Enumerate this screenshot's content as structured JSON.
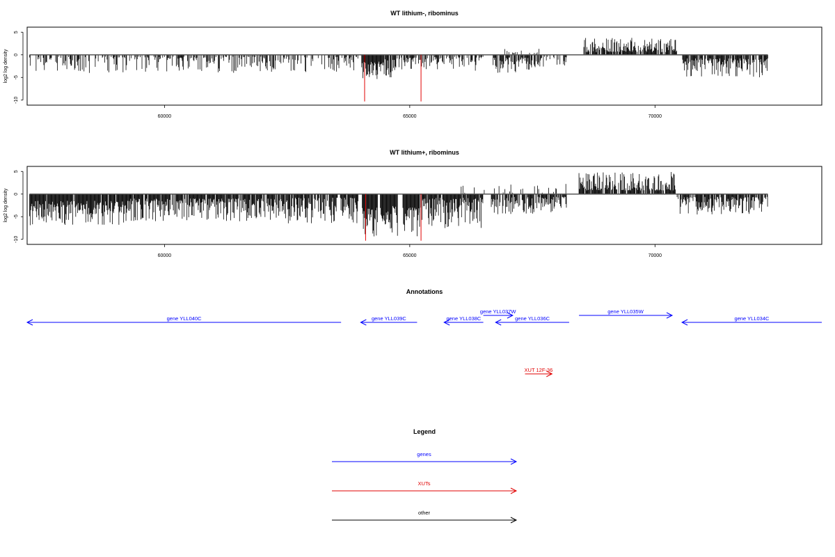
{
  "chart_data": [
    {
      "type": "bar",
      "title": "WT lithium-, ribominus",
      "ylabel": "log2 log density",
      "xlim": [
        57200,
        73400
      ],
      "ylim": [
        -10.5,
        5.5
      ],
      "yticks": [
        5,
        0,
        -5,
        -10
      ],
      "xticks": [
        60000,
        65000,
        70000
      ],
      "data_range": [
        57250,
        72300
      ],
      "grid": false,
      "baseline": 0,
      "segments": [
        {
          "from": 57250,
          "to": 63980,
          "sign": -1,
          "min": 0.4,
          "max": 4.0,
          "density": 0.45
        },
        {
          "from": 64020,
          "to": 64480,
          "sign": -1,
          "min": 1.5,
          "max": 5.5,
          "density": 0.95
        },
        {
          "from": 64500,
          "to": 64720,
          "sign": -1,
          "min": 1.0,
          "max": 5.0,
          "density": 0.9
        },
        {
          "from": 64720,
          "to": 65150,
          "sign": -1,
          "min": 0.6,
          "max": 3.5,
          "density": 0.7
        },
        {
          "from": 65180,
          "to": 66500,
          "sign": -1,
          "min": 0.4,
          "max": 3.5,
          "density": 0.55
        },
        {
          "from": 66700,
          "to": 67700,
          "sign": -1,
          "min": 0.6,
          "max": 4.0,
          "density": 0.7
        },
        {
          "from": 67700,
          "to": 68200,
          "sign": -1,
          "min": 0.4,
          "max": 3.0,
          "density": 0.3
        },
        {
          "from": 66900,
          "to": 67700,
          "sign": 1,
          "min": 0.3,
          "max": 2.0,
          "density": 0.15
        },
        {
          "from": 68550,
          "to": 70450,
          "sign": 1,
          "min": 0.6,
          "max": 3.8,
          "density": 0.8
        },
        {
          "from": 70550,
          "to": 72300,
          "sign": -1,
          "min": 0.8,
          "max": 5.0,
          "density": 0.85
        }
      ],
      "highlights": [
        {
          "x": 64080,
          "value": -10.3,
          "color": "#e00000"
        },
        {
          "x": 65230,
          "value": -10.3,
          "color": "#e00000"
        }
      ]
    },
    {
      "type": "bar",
      "title": "WT lithium+, ribominus",
      "ylabel": "log2 log density",
      "xlim": [
        57200,
        73400
      ],
      "ylim": [
        -10.5,
        5.5
      ],
      "yticks": [
        5,
        0,
        -5,
        -10
      ],
      "xticks": [
        60000,
        65000,
        70000
      ],
      "data_range": [
        57250,
        72300
      ],
      "grid": false,
      "baseline": 0,
      "segments": [
        {
          "from": 57250,
          "to": 59300,
          "sign": -1,
          "min": 1.5,
          "max": 7.0,
          "density": 0.95
        },
        {
          "from": 59300,
          "to": 62500,
          "sign": -1,
          "min": 1.0,
          "max": 6.0,
          "density": 0.9
        },
        {
          "from": 62500,
          "to": 63950,
          "sign": -1,
          "min": 0.8,
          "max": 6.5,
          "density": 0.85
        },
        {
          "from": 64030,
          "to": 64350,
          "sign": -1,
          "min": 3.0,
          "max": 9.5,
          "density": 1.0
        },
        {
          "from": 64400,
          "to": 64760,
          "sign": -1,
          "min": 2.5,
          "max": 9.8,
          "density": 1.0
        },
        {
          "from": 64860,
          "to": 65200,
          "sign": -1,
          "min": 3.0,
          "max": 9.8,
          "density": 1.0
        },
        {
          "from": 65200,
          "to": 66500,
          "sign": -1,
          "min": 0.8,
          "max": 7.5,
          "density": 0.9
        },
        {
          "from": 66650,
          "to": 68200,
          "sign": -1,
          "min": 0.6,
          "max": 4.5,
          "density": 0.75
        },
        {
          "from": 66000,
          "to": 68200,
          "sign": 1,
          "min": 0.3,
          "max": 2.5,
          "density": 0.12
        },
        {
          "from": 68450,
          "to": 70450,
          "sign": 1,
          "min": 0.8,
          "max": 5.0,
          "density": 0.85
        },
        {
          "from": 70450,
          "to": 72300,
          "sign": -1,
          "min": 0.6,
          "max": 4.5,
          "density": 0.8
        }
      ],
      "highlights": [
        {
          "x": 64100,
          "value": -10.3,
          "color": "#e00000"
        },
        {
          "x": 65230,
          "value": -10.3,
          "color": "#e00000"
        }
      ]
    }
  ],
  "annotations": {
    "title": "Annotations",
    "xlim": [
      57200,
      73400
    ],
    "features": [
      {
        "label": "gene YLL040C",
        "start": 57200,
        "end": 63600,
        "strand": "-",
        "row": 0,
        "color": "#0000ff"
      },
      {
        "label": "gene YLL039C",
        "start": 64000,
        "end": 65150,
        "strand": "-",
        "row": 0,
        "color": "#0000ff"
      },
      {
        "label": "gene YLL038C",
        "start": 65700,
        "end": 66500,
        "strand": "-",
        "row": 0,
        "color": "#0000ff"
      },
      {
        "label": "gene YLL037W",
        "start": 66500,
        "end": 67100,
        "strand": "+",
        "row": 1,
        "color": "#0000ff"
      },
      {
        "label": "gene YLL036C",
        "start": 66750,
        "end": 68250,
        "strand": "-",
        "row": 0,
        "color": "#0000ff"
      },
      {
        "label": "gene YLL035W",
        "start": 68450,
        "end": 70350,
        "strand": "+",
        "row": 1,
        "color": "#0000ff"
      },
      {
        "label": "gene YLL034C",
        "start": 70550,
        "end": 73400,
        "strand": "-",
        "row": 0,
        "color": "#0000ff"
      },
      {
        "label": "XUT 12F-36",
        "start": 67350,
        "end": 67900,
        "strand": "+",
        "row": 2,
        "color": "#e00000"
      }
    ]
  },
  "legend": {
    "title": "Legend",
    "items": [
      {
        "label": "genes",
        "color": "#0000ff"
      },
      {
        "label": "XUTs",
        "color": "#e00000"
      },
      {
        "label": "other",
        "color": "#000000"
      }
    ]
  }
}
